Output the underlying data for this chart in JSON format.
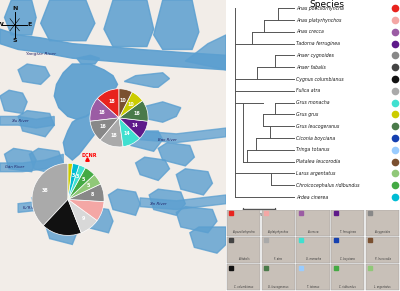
{
  "species": [
    "Anas poecilorhyncha",
    "Anas platyrhynchos",
    "Anas crecca",
    "Tadorna ferruginea",
    "Anser cygnoides",
    "Anser fabalis",
    "Cygnus columbianus",
    "Fulica atra",
    "Grus monacha",
    "Grus grus",
    "Grus leucogeranus",
    "Ciconia boyciana",
    "Tringa totanus",
    "Platalea leucorodia",
    "Larus argentatus",
    "Chroicocephalus ridibundus",
    "Ardea cinerea"
  ],
  "species_colors": [
    "#e8231e",
    "#f4a7a5",
    "#9b5ca4",
    "#5e1a8a",
    "#888888",
    "#444444",
    "#111111",
    "#aaaaaa",
    "#40e0d0",
    "#cccc00",
    "#4a7a4a",
    "#1540b0",
    "#99ccff",
    "#7a5030",
    "#90c878",
    "#44aa44",
    "#00bcd4"
  ],
  "pie1_values": [
    18,
    18,
    16,
    18,
    14,
    14,
    16,
    10,
    10
  ],
  "pie1_colors": [
    "#e8231e",
    "#9b5ca4",
    "#888888",
    "#aaaaaa",
    "#40e0d0",
    "#5e1a8a",
    "#4a7a4a",
    "#cccc00",
    "#7a5030"
  ],
  "pie1_labels": [
    "18",
    "18",
    "16",
    "18",
    "14",
    "14",
    "16",
    "10",
    "10"
  ],
  "pie2_values": [
    38,
    18,
    9,
    9,
    8,
    5,
    5,
    3,
    3,
    2
  ],
  "pie2_colors": [
    "#aaaaaa",
    "#111111",
    "#d8d8d8",
    "#f4a7a5",
    "#888888",
    "#90c878",
    "#44aa44",
    "#40e0d0",
    "#00bcd4",
    "#cccc00"
  ],
  "pie2_labels": [
    "38",
    "",
    "9",
    "",
    "8",
    "5",
    "5",
    "3",
    "3",
    ""
  ],
  "land_color": "#f2ede8",
  "water_color": "#5b9fd0",
  "water_light": "#a8d0e8",
  "bg_color": "#ffffff",
  "tree_color": "#555555",
  "scale_bar": "0.05"
}
